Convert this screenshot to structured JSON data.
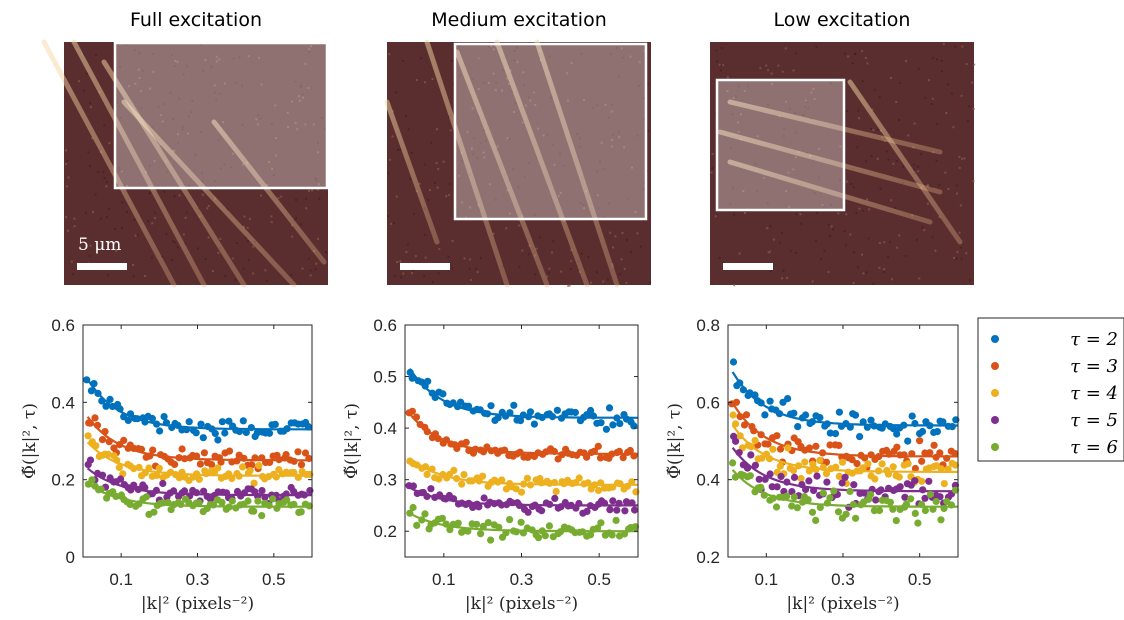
{
  "panel_titles": [
    "Full excitation",
    "Medium excitation",
    "Low excitation"
  ],
  "scale_bar_label": "5 μm",
  "legend": [
    {
      "label": "τ = 2",
      "color": "#0072BD"
    },
    {
      "label": "τ = 3",
      "color": "#D95319"
    },
    {
      "label": "τ = 4",
      "color": "#EDB120"
    },
    {
      "label": "τ = 5",
      "color": "#7E2F8E"
    },
    {
      "label": "τ = 6",
      "color": "#77AC30"
    }
  ],
  "image_tint": {
    "base": "#5a2e2e",
    "fibre": "#f2d8a8",
    "overlay": "#ffffff"
  },
  "chart_data": [
    {
      "type": "scatter",
      "xlabel": "|k|² (pixels⁻²)",
      "ylabel": "Φ̃(|k|², τ)",
      "xlim": [
        0,
        0.6
      ],
      "ylim": [
        0,
        0.6
      ],
      "xticks": [
        "0.1",
        "0.3",
        "0.5"
      ],
      "yticks": [
        "0",
        "0.2",
        "0.4",
        "0.6"
      ],
      "series": [
        {
          "name": "τ = 2",
          "fit_start": 0.48,
          "fit_end": 0.33,
          "scatter": 0.022
        },
        {
          "name": "τ = 3",
          "fit_start": 0.38,
          "fit_end": 0.25,
          "scatter": 0.02
        },
        {
          "name": "τ = 4",
          "fit_start": 0.31,
          "fit_end": 0.21,
          "scatter": 0.02
        },
        {
          "name": "τ = 5",
          "fit_start": 0.24,
          "fit_end": 0.16,
          "scatter": 0.018
        },
        {
          "name": "τ = 6",
          "fit_start": 0.2,
          "fit_end": 0.13,
          "scatter": 0.02
        }
      ]
    },
    {
      "type": "scatter",
      "xlabel": "|k|² (pixels⁻²)",
      "ylabel": "Φ̃(|k|², τ)",
      "xlim": [
        0,
        0.6
      ],
      "ylim": [
        0.15,
        0.6
      ],
      "xticks": [
        "0.1",
        "0.3",
        "0.5"
      ],
      "yticks": [
        "0.2",
        "0.3",
        "0.4",
        "0.5",
        "0.6"
      ],
      "series": [
        {
          "name": "τ = 2",
          "fit_start": 0.53,
          "fit_end": 0.42,
          "scatter": 0.015
        },
        {
          "name": "τ = 3",
          "fit_start": 0.44,
          "fit_end": 0.35,
          "scatter": 0.012
        },
        {
          "name": "τ = 4",
          "fit_start": 0.35,
          "fit_end": 0.29,
          "scatter": 0.012
        },
        {
          "name": "τ = 5",
          "fit_start": 0.29,
          "fit_end": 0.25,
          "scatter": 0.012
        },
        {
          "name": "τ = 6",
          "fit_start": 0.24,
          "fit_end": 0.2,
          "scatter": 0.014
        }
      ]
    },
    {
      "type": "scatter",
      "xlabel": "|k|² (pixels⁻²)",
      "ylabel": "Φ̃(|k|², τ)",
      "xlim": [
        0,
        0.6
      ],
      "ylim": [
        0.2,
        0.8
      ],
      "xticks": [
        "0.1",
        "0.3",
        "0.5"
      ],
      "yticks": [
        "0.2",
        "0.4",
        "0.6",
        "0.8"
      ],
      "series": [
        {
          "name": "τ = 2",
          "fit_start": 0.7,
          "fit_end": 0.54,
          "scatter": 0.03
        },
        {
          "name": "τ = 3",
          "fit_start": 0.62,
          "fit_end": 0.46,
          "scatter": 0.03
        },
        {
          "name": "τ = 4",
          "fit_start": 0.56,
          "fit_end": 0.42,
          "scatter": 0.03
        },
        {
          "name": "τ = 5",
          "fit_start": 0.5,
          "fit_end": 0.37,
          "scatter": 0.03
        },
        {
          "name": "τ = 6",
          "fit_start": 0.44,
          "fit_end": 0.33,
          "scatter": 0.035
        }
      ]
    }
  ]
}
